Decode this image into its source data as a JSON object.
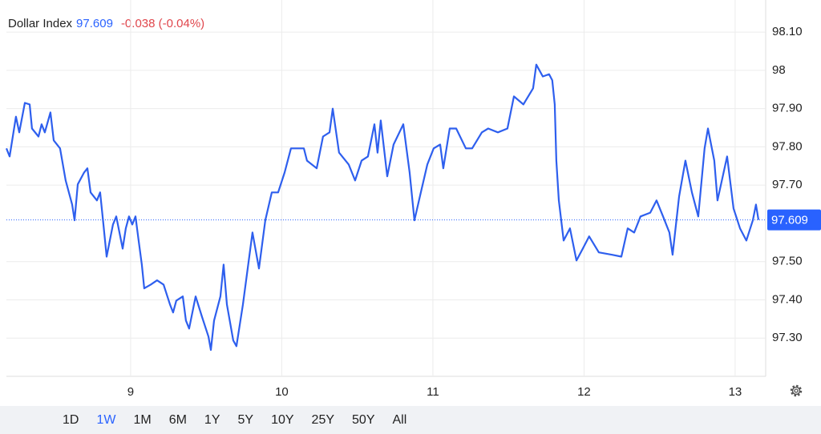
{
  "chart_data": {
    "type": "line",
    "title": "Dollar Index",
    "last_value": 97.609,
    "change": "-0.038 (-0.04%)",
    "color": "#2e5fee",
    "grid": true,
    "x": [
      8.178,
      8.199,
      8.241,
      8.263,
      8.3,
      8.332,
      8.347,
      8.39,
      8.411,
      8.432,
      8.469,
      8.491,
      8.533,
      8.57,
      8.613,
      8.629,
      8.65,
      8.692,
      8.714,
      8.735,
      8.777,
      8.798,
      8.82,
      8.841,
      8.883,
      8.905,
      8.947,
      8.968,
      8.989,
      9.011,
      9.032,
      9.053,
      9.074,
      9.09,
      9.133,
      9.175,
      9.218,
      9.26,
      9.281,
      9.302,
      9.345,
      9.366,
      9.387,
      9.43,
      9.472,
      9.515,
      9.531,
      9.552,
      9.594,
      9.615,
      9.637,
      9.679,
      9.7,
      9.743,
      9.785,
      9.806,
      9.849,
      9.891,
      9.934,
      9.976,
      10.019,
      10.061,
      10.103,
      10.146,
      10.167,
      10.231,
      10.273,
      10.316,
      10.337,
      10.379,
      10.443,
      10.485,
      10.528,
      10.57,
      10.613,
      10.634,
      10.655,
      10.698,
      10.74,
      10.804,
      10.846,
      10.878,
      10.92,
      10.963,
      11.005,
      11.048,
      11.069,
      11.111,
      11.154,
      11.218,
      11.26,
      11.324,
      11.366,
      11.43,
      11.493,
      11.536,
      11.599,
      11.663,
      11.684,
      11.727,
      11.769,
      11.79,
      11.806,
      11.817,
      11.833,
      11.865,
      11.907,
      11.95,
      11.992,
      12.034,
      12.098,
      12.183,
      12.247,
      12.289,
      12.332,
      12.374,
      12.438,
      12.48,
      12.523,
      12.565,
      12.586,
      12.629,
      12.671,
      12.714,
      12.756,
      12.798,
      12.82,
      12.862,
      12.883,
      12.947,
      12.989,
      13.032,
      13.074,
      13.117,
      13.138,
      13.154
    ],
    "values": [
      97.796,
      97.775,
      97.879,
      97.838,
      97.915,
      97.911,
      97.848,
      97.827,
      97.859,
      97.838,
      97.89,
      97.817,
      97.796,
      97.712,
      97.649,
      97.608,
      97.702,
      97.733,
      97.744,
      97.681,
      97.66,
      97.681,
      97.597,
      97.513,
      97.597,
      97.618,
      97.534,
      97.587,
      97.618,
      97.597,
      97.618,
      97.555,
      97.492,
      97.43,
      97.44,
      97.451,
      97.44,
      97.388,
      97.367,
      97.398,
      97.409,
      97.346,
      97.325,
      97.409,
      97.356,
      97.304,
      97.269,
      97.346,
      97.409,
      97.492,
      97.388,
      97.294,
      97.279,
      97.388,
      97.513,
      97.576,
      97.482,
      97.608,
      97.681,
      97.681,
      97.733,
      97.796,
      97.796,
      97.796,
      97.764,
      97.744,
      97.827,
      97.838,
      97.9,
      97.785,
      97.754,
      97.712,
      97.764,
      97.775,
      97.859,
      97.785,
      97.869,
      97.723,
      97.806,
      97.859,
      97.733,
      97.608,
      97.681,
      97.754,
      97.796,
      97.806,
      97.744,
      97.848,
      97.848,
      97.796,
      97.796,
      97.838,
      97.848,
      97.838,
      97.848,
      97.932,
      97.911,
      97.953,
      98.015,
      97.984,
      97.99,
      97.974,
      97.911,
      97.764,
      97.66,
      97.555,
      97.587,
      97.503,
      97.534,
      97.566,
      97.524,
      97.518,
      97.513,
      97.587,
      97.576,
      97.618,
      97.628,
      97.66,
      97.618,
      97.576,
      97.518,
      97.67,
      97.764,
      97.681,
      97.618,
      97.796,
      97.848,
      97.764,
      97.66,
      97.775,
      97.639,
      97.587,
      97.555,
      97.608,
      97.649,
      97.609
    ],
    "xlim": [
      8.178,
      13.202
    ],
    "xticks": [
      9,
      10,
      11,
      12,
      13
    ],
    "ylim": [
      97.2,
      98.184
    ],
    "yticks": [
      {
        "value": 97.3,
        "label": "97.30"
      },
      {
        "value": 97.4,
        "label": "97.40"
      },
      {
        "value": 97.5,
        "label": "97.50"
      },
      {
        "value": 97.7,
        "label": "97.70"
      },
      {
        "value": 97.8,
        "label": "97.80"
      },
      {
        "value": 97.9,
        "label": "97.90"
      },
      98,
      {
        "value": 98.1,
        "label": "98.10"
      }
    ],
    "range_buttons": [
      "1D",
      "1W",
      "1M",
      "6M",
      "1Y",
      "5Y",
      "10Y",
      "25Y",
      "50Y",
      "All"
    ],
    "active_range": "1W"
  }
}
